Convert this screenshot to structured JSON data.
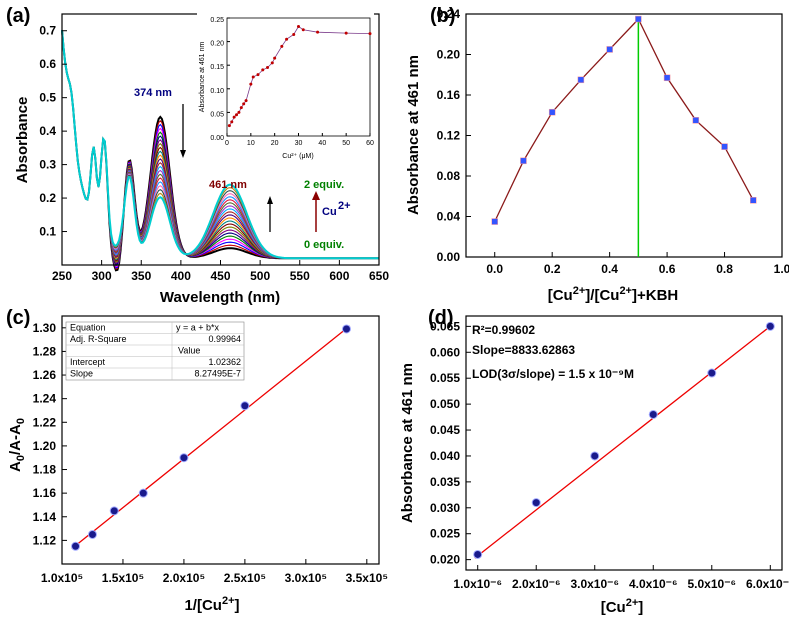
{
  "chart_data": [
    {
      "panel": "(a)",
      "type": "line",
      "xlabel": "Wavelength (nm)",
      "ylabel": "Absorbance",
      "xlim": [
        250,
        650
      ],
      "ylim": [
        0,
        0.75
      ],
      "xticks": [
        "250",
        "300",
        "350",
        "400",
        "450",
        "500",
        "550",
        "600",
        "650"
      ],
      "yticks": [
        "0.1",
        "0.2",
        "0.3",
        "0.4",
        "0.5",
        "0.6",
        "0.7"
      ],
      "annotations": {
        "peak1": "374 nm",
        "peak2": "461 nm",
        "top": "2 equiv.",
        "bottom": "0 equiv.",
        "ion": "Cu",
        "ion_sup": "2+"
      },
      "series_colors": [
        "#000000",
        "#c00000",
        "#0000ff",
        "#ff00ff",
        "#008000",
        "#000080",
        "#800080",
        "#808000",
        "#800000",
        "#008080",
        "#ff8c00",
        "#4b0082",
        "#a52a2a",
        "#00aaff",
        "#9932cc",
        "#556b2f",
        "#dc143c",
        "#1e90ff",
        "#ff69b4",
        "#2f4f4f",
        "#b8860b",
        "#00ced1"
      ],
      "inset": {
        "type": "line",
        "xlabel": "Cu²⁺ (μM)",
        "ylabel": "Absorbance at 461 nm",
        "xlim": [
          0,
          60
        ],
        "ylim": [
          0,
          0.25
        ],
        "xticks": [
          "0",
          "10",
          "20",
          "30",
          "40",
          "50",
          "60"
        ],
        "yticks": [
          "0.00",
          "0.05",
          "0.10",
          "0.15",
          "0.20",
          "0.25"
        ],
        "x": [
          1,
          2,
          3,
          4,
          5,
          6,
          7,
          8,
          10,
          11,
          13,
          15,
          17,
          19,
          20,
          23,
          25,
          28,
          30,
          32,
          38,
          50,
          60
        ],
        "y": [
          0.022,
          0.03,
          0.04,
          0.045,
          0.05,
          0.06,
          0.068,
          0.075,
          0.11,
          0.125,
          0.13,
          0.14,
          0.145,
          0.155,
          0.165,
          0.19,
          0.205,
          0.215,
          0.232,
          0.225,
          0.22,
          0.218,
          0.217
        ]
      }
    },
    {
      "panel": "(b)",
      "type": "line",
      "xlabel": "[Cu²⁺]/[Cu²⁺]+KBH",
      "ylabel": "Absorbance at 461 nm",
      "xlim": [
        -0.1,
        1.0
      ],
      "ylim": [
        0,
        0.24
      ],
      "xticks": [
        "0.0",
        "0.2",
        "0.4",
        "0.6",
        "0.8",
        "1.0"
      ],
      "yticks": [
        "0.00",
        "0.04",
        "0.08",
        "0.12",
        "0.16",
        "0.20",
        "0.24"
      ],
      "x": [
        0.0,
        0.1,
        0.2,
        0.3,
        0.4,
        0.5,
        0.6,
        0.7,
        0.8,
        0.9
      ],
      "y": [
        0.035,
        0.095,
        0.143,
        0.175,
        0.205,
        0.235,
        0.177,
        0.135,
        0.109,
        0.056
      ],
      "vline_x": 0.5
    },
    {
      "panel": "(c)",
      "type": "scatter",
      "xlabel": "1/[Cu²⁺]",
      "ylabel": "A₀/A-A₀",
      "xlim": [
        100000,
        360000
      ],
      "ylim": [
        1.1,
        1.31
      ],
      "xticks": [
        "1.0x10⁵",
        "1.5x10⁵",
        "2.0x10⁵",
        "2.5x10⁵",
        "3.0x10⁵",
        "3.5x10⁵"
      ],
      "yticks": [
        "1.12",
        "1.14",
        "1.16",
        "1.18",
        "1.20",
        "1.22",
        "1.24",
        "1.26",
        "1.28",
        "1.30"
      ],
      "x": [
        111111,
        125000,
        142857,
        166667,
        200000,
        250000,
        333333
      ],
      "y": [
        1.115,
        1.125,
        1.145,
        1.16,
        1.19,
        1.234,
        1.299
      ],
      "fit": {
        "intercept": 1.02362,
        "slope": 8.27495e-07
      },
      "table": [
        [
          "Equation",
          "y = a + b*x"
        ],
        [
          "Adj. R-Square",
          "0.99964"
        ],
        [
          "",
          "Value"
        ],
        [
          "Intercept",
          "1.02362"
        ],
        [
          "Slope",
          "8.27495E-7"
        ]
      ]
    },
    {
      "panel": "(d)",
      "type": "scatter",
      "xlabel": "[Cu²⁺]",
      "ylabel": "Absorbance at 461 nm",
      "xlim": [
        8e-07,
        6.2e-06
      ],
      "ylim": [
        0.018,
        0.067
      ],
      "xticks": [
        "1.0x10⁻⁶",
        "2.0x10⁻⁶",
        "3.0x10⁻⁶",
        "4.0x10⁻⁶",
        "5.0x10⁻⁶",
        "6.0x10⁻⁶"
      ],
      "yticks": [
        "0.020",
        "0.025",
        "0.030",
        "0.035",
        "0.040",
        "0.045",
        "0.050",
        "0.055",
        "0.060",
        "0.065"
      ],
      "x": [
        1e-06,
        2e-06,
        3e-06,
        4e-06,
        5e-06,
        6e-06
      ],
      "y": [
        0.021,
        0.031,
        0.04,
        0.048,
        0.056,
        0.065
      ],
      "annotations": [
        "R²=0.99602",
        "Slope=8833.62863",
        "LOD(3σ/slope) = 1.5 x 10⁻⁹M"
      ]
    }
  ],
  "colors": {
    "line_b": "#8b1a1a",
    "marker": "#3355ff",
    "vline": "#00cc00",
    "fit": "#ee0000",
    "marker_c": "#1a1a8c"
  }
}
